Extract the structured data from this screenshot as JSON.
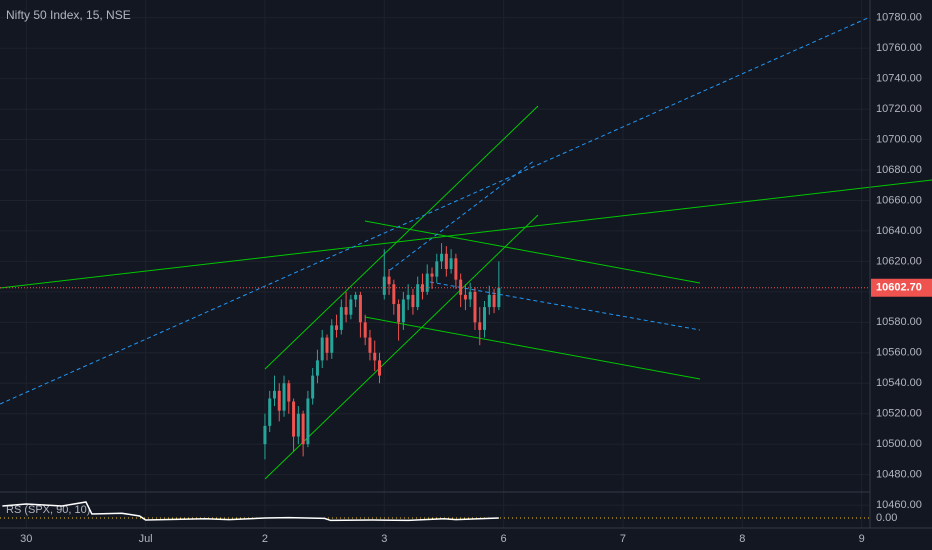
{
  "chart_data": {
    "type": "candlestick",
    "title": "Nifty 50 Index, 15, NSE",
    "up_color": "#26a69a",
    "down_color": "#ef5350",
    "grid": true,
    "xlim": [
      -0.22,
      7.07
    ],
    "xticks": [
      {
        "value": 0,
        "label": "30"
      },
      {
        "value": 1,
        "label": "Jul"
      },
      {
        "value": 2,
        "label": "2"
      },
      {
        "value": 3,
        "label": "3"
      },
      {
        "value": 4,
        "label": "6"
      },
      {
        "value": 5,
        "label": "7"
      },
      {
        "value": 6,
        "label": "8"
      },
      {
        "value": 7,
        "label": "9"
      }
    ],
    "ylim": [
      10468.6,
      10791.6
    ],
    "yticks": [
      {
        "value": 10460,
        "label": "10460.00"
      },
      {
        "value": 10480,
        "label": "10480.00"
      },
      {
        "value": 10500,
        "label": "10500.00"
      },
      {
        "value": 10520,
        "label": "10520.00"
      },
      {
        "value": 10540,
        "label": "10540.00"
      },
      {
        "value": 10560,
        "label": "10560.00"
      },
      {
        "value": 10580,
        "label": "10580.00"
      },
      {
        "value": 10600,
        "label": "10600.00"
      },
      {
        "value": 10620,
        "label": "10620.00"
      },
      {
        "value": 10640,
        "label": "10640.00"
      },
      {
        "value": 10660,
        "label": "10660.00"
      },
      {
        "value": 10680,
        "label": "10680.00"
      },
      {
        "value": 10700,
        "label": "10700.00"
      },
      {
        "value": 10720,
        "label": "10720.00"
      },
      {
        "value": 10740,
        "label": "10740.00"
      },
      {
        "value": 10760,
        "label": "10760.00"
      },
      {
        "value": 10780,
        "label": "10780.00"
      }
    ],
    "last_price": {
      "value": 10602.7,
      "label": "10602.70",
      "color": "#ef5350"
    },
    "x": [
      2,
      2.04,
      2.08,
      2.12,
      2.16,
      2.2,
      2.24,
      2.28,
      2.32,
      2.36,
      2.4,
      2.44,
      2.48,
      2.52,
      2.56,
      2.6,
      2.64,
      2.68,
      2.72,
      2.76,
      2.8,
      2.84,
      2.88,
      2.92,
      2.96,
      3,
      3.04,
      3.08,
      3.12,
      3.16,
      3.2,
      3.24,
      3.28,
      3.32,
      3.36,
      3.4,
      3.44,
      3.48,
      3.52,
      3.56,
      3.6,
      3.64,
      3.68,
      3.72,
      3.76,
      3.8,
      3.84,
      3.88,
      3.92,
      3.96
    ],
    "open": [
      10500,
      10512,
      10530,
      10535,
      10522,
      10540,
      10528,
      10505,
      10520,
      10500,
      10530,
      10545,
      10555,
      10570,
      10560,
      10578,
      10575,
      10590,
      10585,
      10595,
      10598,
      10580,
      10570,
      10560,
      10555,
      10598,
      10610,
      10605,
      10592,
      10580,
      10595,
      10598,
      10590,
      10605,
      10600,
      10612,
      10610,
      10620,
      10625,
      10615,
      10622,
      10608,
      10598,
      10595,
      10600,
      10580,
      10575,
      10590,
      10598,
      10590
    ],
    "high": [
      10520,
      10535,
      10545,
      10540,
      10545,
      10542,
      10530,
      10525,
      10522,
      10535,
      10550,
      10562,
      10575,
      10572,
      10582,
      10585,
      10595,
      10600,
      10598,
      10600,
      10600,
      10585,
      10575,
      10568,
      10560,
      10628,
      10615,
      10608,
      10595,
      10600,
      10605,
      10602,
      10610,
      10612,
      10618,
      10616,
      10625,
      10632,
      10630,
      10628,
      10625,
      10612,
      10605,
      10606,
      10603,
      10590,
      10594,
      10604,
      10602,
      10620
    ],
    "low": [
      10490,
      10508,
      10525,
      10515,
      10518,
      10520,
      10495,
      10500,
      10492,
      10498,
      10526,
      10540,
      10550,
      10555,
      10556,
      10570,
      10572,
      10580,
      10582,
      10590,
      10570,
      10565,
      10555,
      10548,
      10540,
      10595,
      10598,
      10585,
      10568,
      10575,
      10588,
      10585,
      10588,
      10595,
      10598,
      10602,
      10606,
      10615,
      10610,
      10612,
      10602,
      10590,
      10588,
      10590,
      10575,
      10565,
      10570,
      10585,
      10586,
      10588
    ],
    "close": [
      10512,
      10530,
      10535,
      10522,
      10540,
      10528,
      10505,
      10520,
      10500,
      10530,
      10545,
      10555,
      10570,
      10560,
      10578,
      10575,
      10590,
      10585,
      10595,
      10598,
      10580,
      10570,
      10560,
      10555,
      10545,
      10610,
      10605,
      10592,
      10580,
      10595,
      10598,
      10590,
      10605,
      10600,
      10612,
      10610,
      10620,
      10625,
      10615,
      10622,
      10608,
      10598,
      10595,
      10600,
      10580,
      10575,
      10590,
      10598,
      10590,
      10602.7
    ],
    "indicator": {
      "label": "RS (SPX, 90, 10)",
      "color": "#ffffff",
      "ylim": [
        -0.02,
        0.06
      ],
      "yticks": [
        {
          "value": 0,
          "label": "0.00"
        }
      ],
      "x": [
        -0.2,
        0,
        0.3,
        0.5,
        0.55,
        0.8,
        0.95,
        1.0,
        1.5,
        1.7,
        2.0,
        2.2,
        2.5,
        2.55,
        2.9,
        3.2,
        3.5,
        3.6,
        3.96
      ],
      "values": [
        0.03,
        0.035,
        0.03,
        0.04,
        0.01,
        0.012,
        0.005,
        -0.005,
        -0.002,
        -0.004,
        0.0,
        0.001,
        -0.001,
        -0.006,
        -0.005,
        -0.006,
        -0.002,
        -0.004,
        0.0
      ]
    }
  }
}
